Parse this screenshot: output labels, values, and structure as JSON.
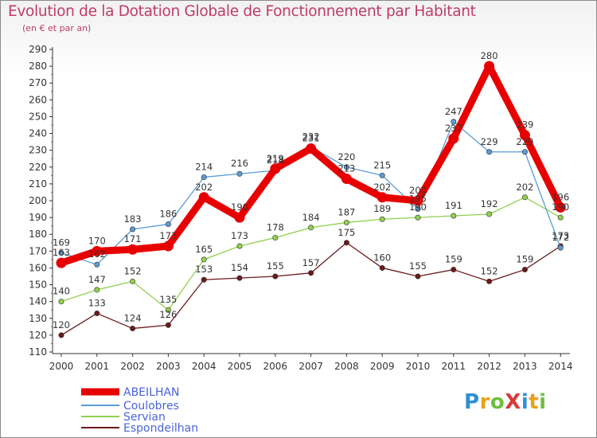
{
  "title": "Evolution de la Dotation Globale de Fonctionnement par Habitant",
  "subtitle": "(en € et par an)",
  "logo": {
    "text": "ProXiti",
    "letters": [
      {
        "ch": "P",
        "color": "#2f8fd4"
      },
      {
        "ch": "r",
        "color": "#e6a21a"
      },
      {
        "ch": "o",
        "color": "#6cbf3f"
      },
      {
        "ch": "X",
        "color": "#d93a3a"
      },
      {
        "ch": "i",
        "color": "#2f8fd4"
      },
      {
        "ch": "t",
        "color": "#e6a21a"
      },
      {
        "ch": "i",
        "color": "#6cbf3f"
      }
    ]
  },
  "chart_data": {
    "type": "line",
    "x": [
      "2000",
      "2001",
      "2002",
      "2003",
      "2004",
      "2005",
      "2006",
      "2007",
      "2008",
      "2009",
      "2010",
      "2011",
      "2012",
      "2013",
      "2014"
    ],
    "ylim": [
      110,
      290
    ],
    "yticks": [
      110,
      120,
      130,
      140,
      150,
      160,
      170,
      180,
      190,
      200,
      210,
      220,
      230,
      240,
      250,
      260,
      270,
      280,
      290
    ],
    "grid": false,
    "legend_position": "bottom-left",
    "series": [
      {
        "name": "ABEILHAN",
        "color": "#e80000",
        "values": [
          163,
          170,
          171,
          173,
          202,
          190,
          219,
          231,
          213,
          202,
          200,
          237,
          280,
          239,
          196
        ],
        "labels": [
          "163",
          "170",
          "171",
          "173",
          "202",
          "190",
          "219",
          "231",
          "213",
          "202",
          "200",
          "237",
          "280",
          "239",
          "196"
        ]
      },
      {
        "name": "Coulobres",
        "color": "#5b9bd5",
        "values": [
          169,
          162,
          183,
          186,
          214,
          216,
          218,
          232,
          220,
          215,
          195,
          247,
          229,
          229,
          172
        ],
        "labels": [
          "169",
          "162",
          "183",
          "186",
          "214",
          "216",
          "218",
          "232",
          "220",
          "215",
          "195",
          "247",
          "229",
          "229",
          "172"
        ]
      },
      {
        "name": "Servian",
        "color": "#92d050",
        "values": [
          140,
          147,
          152,
          135,
          165,
          173,
          178,
          184,
          187,
          189,
          190,
          191,
          192,
          202,
          190
        ],
        "labels": [
          "140",
          "147",
          "152",
          "135",
          "165",
          "173",
          "178",
          "184",
          "187",
          "189",
          "190",
          "191",
          "192",
          "202",
          "190"
        ]
      },
      {
        "name": "Espondeilhan",
        "color": "#6b1a1a",
        "values": [
          120,
          133,
          124,
          126,
          153,
          154,
          155,
          157,
          175,
          160,
          155,
          159,
          152,
          159,
          173
        ],
        "labels": [
          "120",
          "133",
          "124",
          "126",
          "153",
          "154",
          "155",
          "157",
          "175",
          "160",
          "155",
          "159",
          "152",
          "159",
          "173"
        ]
      }
    ]
  }
}
